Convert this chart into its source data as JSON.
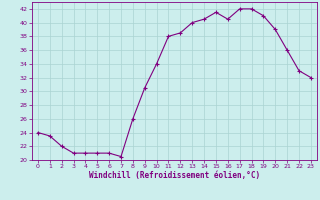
{
  "x": [
    0,
    1,
    2,
    3,
    4,
    5,
    6,
    7,
    8,
    9,
    10,
    11,
    12,
    13,
    14,
    15,
    16,
    17,
    18,
    19,
    20,
    21,
    22,
    23
  ],
  "y": [
    24,
    23.5,
    22,
    21,
    21,
    21,
    21,
    20.5,
    26,
    30.5,
    34,
    38,
    38.5,
    40,
    40.5,
    41.5,
    40.5,
    42,
    42,
    41,
    39,
    36,
    33,
    32
  ],
  "line_color": "#800080",
  "marker": "+",
  "marker_color": "#800080",
  "bg_color": "#cceeed",
  "grid_color": "#aad4d2",
  "xlabel": "Windchill (Refroidissement éolien,°C)",
  "xlabel_color": "#800080",
  "tick_color": "#800080",
  "ylim": [
    20,
    43
  ],
  "xlim": [
    -0.5,
    23.5
  ],
  "yticks": [
    20,
    22,
    24,
    26,
    28,
    30,
    32,
    34,
    36,
    38,
    40,
    42
  ],
  "xticks": [
    0,
    1,
    2,
    3,
    4,
    5,
    6,
    7,
    8,
    9,
    10,
    11,
    12,
    13,
    14,
    15,
    16,
    17,
    18,
    19,
    20,
    21,
    22,
    23
  ]
}
